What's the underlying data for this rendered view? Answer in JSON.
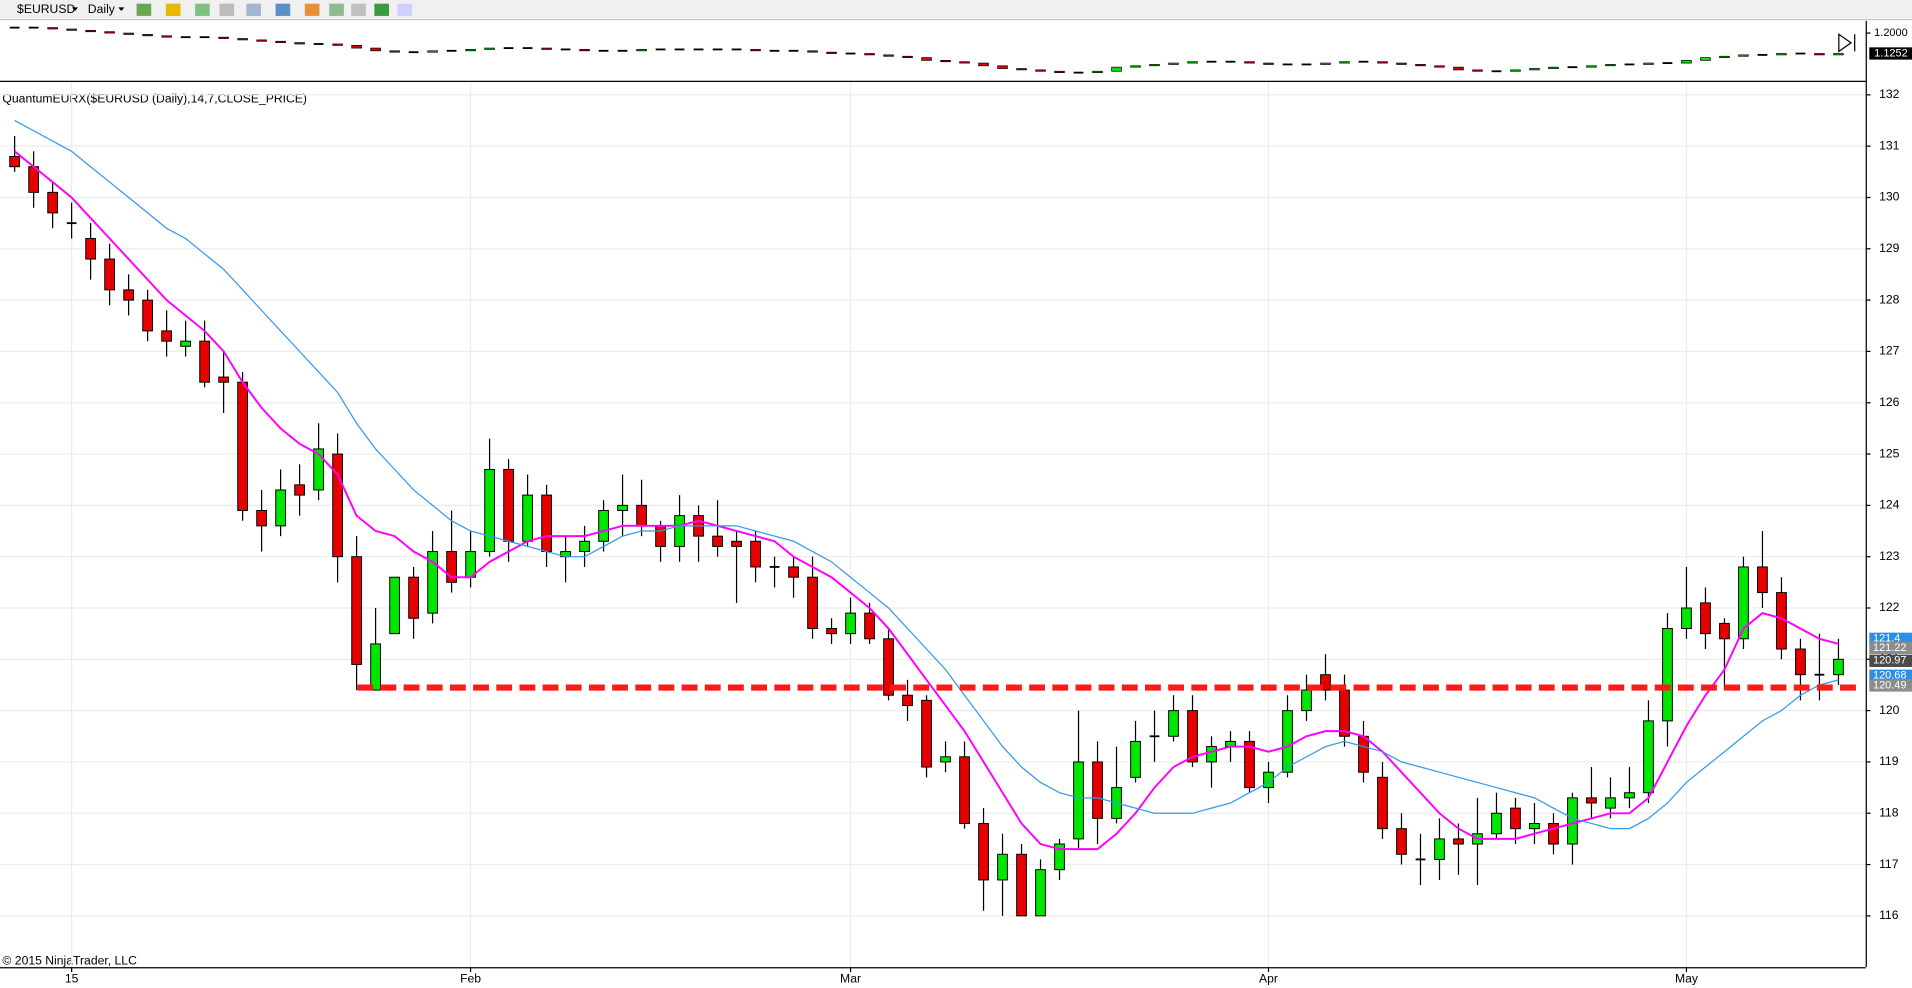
{
  "toolbar": {
    "symbol": "$EURUSD",
    "interval": "Daily"
  },
  "chart_data": [
    {
      "type": "candlestick",
      "title": "QuantumEURX($EURUSD (Daily),14,7,CLOSE_PRICE)",
      "copyright": "© 2015 NinjaTrader, LLC",
      "categories": [
        null,
        null,
        null,
        "15",
        null,
        null,
        null,
        null,
        null,
        null,
        null,
        null,
        null,
        null,
        null,
        null,
        null,
        null,
        null,
        null,
        null,
        null,
        null,
        null,
        "Feb",
        null,
        null,
        null,
        null,
        null,
        null,
        null,
        null,
        null,
        null,
        null,
        null,
        null,
        null,
        null,
        null,
        null,
        null,
        null,
        "Mar",
        null,
        null,
        null,
        null,
        null,
        null,
        null,
        null,
        null,
        null,
        null,
        null,
        null,
        null,
        null,
        null,
        null,
        null,
        null,
        null,
        null,
        "Apr",
        null,
        null,
        null,
        null,
        null,
        null,
        null,
        null,
        null,
        null,
        null,
        null,
        null,
        null,
        null,
        null,
        null,
        null,
        null,
        null,
        null,
        "May",
        null,
        null,
        null,
        null,
        null,
        null,
        null,
        null
      ],
      "open": [
        130.8,
        130.6,
        130.1,
        129.5,
        129.2,
        128.8,
        128.2,
        128.0,
        127.4,
        127.1,
        127.2,
        126.5,
        126.4,
        123.9,
        123.6,
        124.4,
        124.3,
        125.0,
        123.0,
        120.4,
        121.5,
        122.6,
        121.9,
        123.1,
        122.6,
        123.1,
        124.7,
        123.3,
        124.2,
        123.0,
        123.1,
        123.3,
        123.9,
        124.0,
        123.6,
        123.2,
        123.8,
        123.4,
        123.3,
        123.3,
        122.8,
        122.8,
        122.6,
        121.6,
        121.5,
        121.9,
        121.4,
        120.3,
        120.2,
        119.0,
        119.1,
        117.8,
        116.7,
        117.2,
        116.0,
        116.9,
        117.5,
        119.0,
        117.9,
        118.7,
        119.5,
        119.5,
        120.0,
        119.0,
        119.3,
        119.4,
        118.5,
        118.8,
        120.0,
        120.7,
        120.4,
        119.5,
        118.7,
        117.7,
        117.1,
        117.1,
        117.5,
        117.4,
        117.6,
        118.1,
        117.7,
        117.8,
        117.4,
        118.3,
        118.1,
        118.3,
        118.4,
        119.8,
        121.6,
        122.1,
        121.7,
        121.4,
        122.8,
        122.3,
        121.2,
        120.7,
        120.7
      ],
      "high": [
        131.2,
        130.9,
        130.3,
        129.9,
        129.5,
        129.1,
        128.5,
        128.2,
        127.8,
        127.6,
        127.6,
        127.0,
        126.6,
        124.3,
        124.7,
        124.8,
        125.6,
        125.4,
        123.4,
        122.0,
        122.6,
        122.8,
        123.5,
        123.9,
        123.5,
        125.3,
        124.9,
        124.6,
        124.4,
        123.4,
        123.6,
        124.1,
        124.6,
        124.5,
        123.7,
        124.2,
        124.0,
        124.1,
        123.5,
        123.5,
        123.0,
        123.0,
        123.0,
        121.8,
        122.2,
        122.1,
        121.6,
        120.6,
        120.3,
        119.4,
        119.4,
        118.1,
        117.6,
        117.4,
        117.1,
        117.5,
        120.0,
        119.4,
        119.3,
        119.8,
        120.0,
        120.3,
        120.3,
        119.5,
        119.6,
        119.6,
        119.0,
        120.3,
        120.7,
        121.1,
        120.7,
        119.8,
        119.0,
        118.0,
        117.6,
        117.9,
        117.8,
        118.3,
        118.4,
        118.3,
        118.2,
        118.0,
        118.4,
        118.9,
        118.7,
        118.9,
        120.2,
        121.9,
        122.8,
        122.4,
        121.8,
        123.0,
        123.5,
        122.6,
        121.4,
        121.5,
        121.4
      ],
      "low": [
        130.5,
        129.8,
        129.4,
        129.2,
        128.4,
        127.9,
        127.7,
        127.2,
        126.9,
        126.9,
        126.3,
        125.8,
        123.7,
        123.1,
        123.4,
        123.8,
        124.1,
        122.5,
        120.4,
        120.4,
        121.5,
        121.4,
        121.7,
        122.3,
        122.4,
        123.0,
        122.9,
        123.2,
        122.8,
        122.5,
        122.8,
        123.1,
        123.4,
        123.4,
        122.9,
        122.9,
        122.9,
        123.0,
        122.1,
        122.5,
        122.4,
        122.2,
        121.4,
        121.3,
        121.3,
        121.3,
        120.2,
        119.8,
        118.7,
        118.8,
        117.7,
        116.1,
        116.0,
        116.0,
        116.0,
        116.7,
        117.3,
        117.4,
        117.8,
        118.6,
        119.0,
        119.4,
        118.9,
        118.5,
        119.0,
        118.4,
        118.2,
        118.7,
        119.8,
        120.2,
        119.3,
        118.6,
        117.5,
        117.0,
        116.6,
        116.7,
        116.8,
        116.6,
        117.5,
        117.4,
        117.4,
        117.2,
        117.0,
        117.9,
        117.9,
        118.1,
        118.2,
        119.3,
        121.4,
        121.2,
        120.4,
        121.2,
        122.0,
        121.0,
        120.2,
        120.2,
        120.5
      ],
      "close": [
        130.6,
        130.1,
        129.7,
        129.5,
        128.8,
        128.2,
        128.0,
        127.4,
        127.2,
        127.2,
        126.4,
        126.4,
        123.9,
        123.6,
        124.3,
        124.2,
        125.1,
        123.0,
        120.9,
        121.3,
        122.6,
        121.8,
        123.1,
        122.5,
        123.1,
        124.7,
        123.3,
        124.2,
        123.1,
        123.1,
        123.3,
        123.9,
        124.0,
        123.6,
        123.2,
        123.8,
        123.4,
        123.2,
        123.2,
        122.8,
        122.8,
        122.6,
        121.6,
        121.5,
        121.9,
        121.4,
        120.3,
        120.1,
        118.9,
        119.1,
        117.8,
        116.7,
        117.2,
        116.0,
        116.9,
        117.4,
        119.0,
        117.9,
        118.5,
        119.4,
        119.5,
        120.0,
        119.0,
        119.3,
        119.4,
        118.5,
        118.8,
        120.0,
        120.4,
        120.4,
        119.5,
        118.8,
        117.7,
        117.2,
        117.1,
        117.5,
        117.4,
        117.6,
        118.0,
        117.7,
        117.8,
        117.4,
        118.3,
        118.2,
        118.3,
        118.4,
        119.8,
        121.6,
        122.0,
        121.5,
        121.4,
        122.8,
        122.3,
        121.2,
        120.7,
        120.7,
        121.0
      ],
      "up_color": "#00e600",
      "down_color": "#e60000",
      "lines": [
        {
          "color": "#ff00ff",
          "values": [
            130.9,
            130.6,
            130.3,
            130.0,
            129.6,
            129.2,
            128.8,
            128.4,
            128.0,
            127.7,
            127.4,
            127.0,
            126.4,
            125.9,
            125.5,
            125.2,
            125.0,
            124.6,
            123.8,
            123.5,
            123.4,
            123.1,
            122.9,
            122.6,
            122.6,
            122.9,
            123.1,
            123.3,
            123.4,
            123.4,
            123.4,
            123.5,
            123.6,
            123.6,
            123.6,
            123.6,
            123.7,
            123.6,
            123.5,
            123.4,
            123.3,
            123.0,
            122.8,
            122.6,
            122.3,
            122.0,
            121.6,
            121.1,
            120.6,
            120.1,
            119.6,
            119.0,
            118.4,
            117.8,
            117.4,
            117.3,
            117.3,
            117.3,
            117.6,
            118.0,
            118.5,
            118.9,
            119.1,
            119.2,
            119.3,
            119.3,
            119.2,
            119.3,
            119.5,
            119.6,
            119.6,
            119.5,
            119.2,
            118.8,
            118.4,
            118.0,
            117.7,
            117.5,
            117.5,
            117.5,
            117.6,
            117.7,
            117.8,
            117.9,
            118.0,
            118.0,
            118.3,
            119.0,
            119.7,
            120.3,
            120.8,
            121.6,
            121.9,
            121.8,
            121.6,
            121.4,
            121.3
          ]
        },
        {
          "color": "#3399ee",
          "values": [
            131.5,
            131.3,
            131.1,
            130.9,
            130.6,
            130.3,
            130.0,
            129.7,
            129.4,
            129.2,
            128.9,
            128.6,
            128.2,
            127.8,
            127.4,
            127.0,
            126.6,
            126.2,
            125.6,
            125.1,
            124.7,
            124.3,
            124.0,
            123.7,
            123.5,
            123.4,
            123.3,
            123.2,
            123.1,
            123.0,
            123.0,
            123.2,
            123.4,
            123.5,
            123.5,
            123.6,
            123.6,
            123.6,
            123.6,
            123.5,
            123.4,
            123.3,
            123.1,
            122.9,
            122.6,
            122.3,
            122.0,
            121.6,
            121.2,
            120.8,
            120.3,
            119.8,
            119.3,
            118.9,
            118.6,
            118.4,
            118.3,
            118.3,
            118.2,
            118.1,
            118.0,
            118.0,
            118.0,
            118.1,
            118.2,
            118.4,
            118.6,
            118.9,
            119.1,
            119.3,
            119.4,
            119.3,
            119.2,
            119.0,
            118.9,
            118.8,
            118.7,
            118.6,
            118.5,
            118.4,
            118.3,
            118.1,
            117.9,
            117.8,
            117.7,
            117.7,
            117.9,
            118.2,
            118.6,
            118.9,
            119.2,
            119.5,
            119.8,
            120.0,
            120.3,
            120.5,
            120.6
          ]
        }
      ],
      "level": 120.45,
      "level_color": "#ff1a1a",
      "price_labels": [
        {
          "value": 121.4,
          "color": "#2b8fe8"
        },
        {
          "value": 121.22,
          "color": "#8c8c8c"
        },
        {
          "value": 120.97,
          "color": "#4a4a4a"
        },
        {
          "value": 120.68,
          "color": "#2b8fe8"
        },
        {
          "value": 120.49,
          "color": "#8c8c8c"
        }
      ],
      "ylim": [
        115.0,
        132.25
      ],
      "yticks": [
        116,
        117,
        118,
        119,
        120,
        121,
        122,
        123,
        124,
        125,
        126,
        127,
        128,
        129,
        130,
        131,
        132
      ],
      "grid": true
    },
    {
      "type": "candlestick",
      "close": [
        1.22,
        1.22,
        1.215,
        1.21,
        1.205,
        1.2,
        1.195,
        1.19,
        1.185,
        1.185,
        1.185,
        1.18,
        1.175,
        1.17,
        1.165,
        1.16,
        1.16,
        1.155,
        1.145,
        1.135,
        1.13,
        1.13,
        1.135,
        1.135,
        1.14,
        1.145,
        1.145,
        1.145,
        1.14,
        1.14,
        1.135,
        1.135,
        1.135,
        1.14,
        1.14,
        1.14,
        1.14,
        1.14,
        1.14,
        1.135,
        1.135,
        1.135,
        1.13,
        1.125,
        1.125,
        1.12,
        1.115,
        1.11,
        1.1,
        1.095,
        1.09,
        1.08,
        1.07,
        1.065,
        1.06,
        1.055,
        1.055,
        1.06,
        1.075,
        1.08,
        1.085,
        1.09,
        1.095,
        1.095,
        1.095,
        1.09,
        1.085,
        1.085,
        1.085,
        1.09,
        1.095,
        1.095,
        1.09,
        1.085,
        1.08,
        1.075,
        1.065,
        1.06,
        1.06,
        1.065,
        1.07,
        1.075,
        1.075,
        1.08,
        1.085,
        1.085,
        1.09,
        1.09,
        1.1,
        1.11,
        1.115,
        1.12,
        1.12,
        1.125,
        1.125,
        1.12,
        1.125
      ],
      "up_color": "#00e600",
      "down_color": "#e60000",
      "ylim": [
        1.025,
        1.245
      ],
      "yticks": [
        {
          "value": 1.2,
          "label": "1.2000"
        }
      ],
      "last_price": {
        "value": 1.1252,
        "label": "1.1252"
      }
    }
  ]
}
